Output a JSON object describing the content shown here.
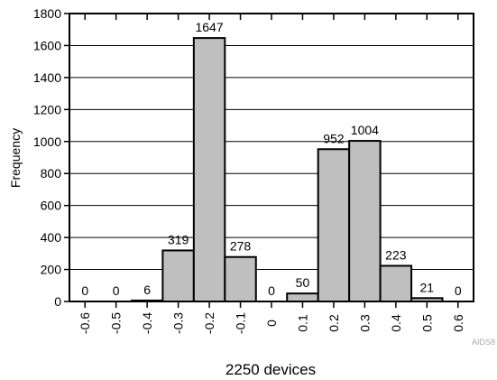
{
  "chart_data": {
    "type": "bar",
    "categories": [
      "-0.6",
      "-0.5",
      "-0.4",
      "-0.3",
      "-0.2",
      "-0.1",
      "0",
      "0.1",
      "0.2",
      "0.3",
      "0.4",
      "0.5",
      "0.6"
    ],
    "values": [
      0,
      0,
      6,
      319,
      1647,
      278,
      0,
      50,
      952,
      1004,
      223,
      21,
      0
    ],
    "ylabel": "Frequency",
    "xlabel": "2250 devices",
    "ylim": [
      0,
      1800
    ],
    "yticks": [
      0,
      200,
      400,
      600,
      800,
      1000,
      1200,
      1400,
      1600,
      1800
    ],
    "grid": "horizontal",
    "legend": "none",
    "bar_color": "#bfbfbf",
    "bar_edge_color": "#000000"
  },
  "figure_code": "AIDS8"
}
